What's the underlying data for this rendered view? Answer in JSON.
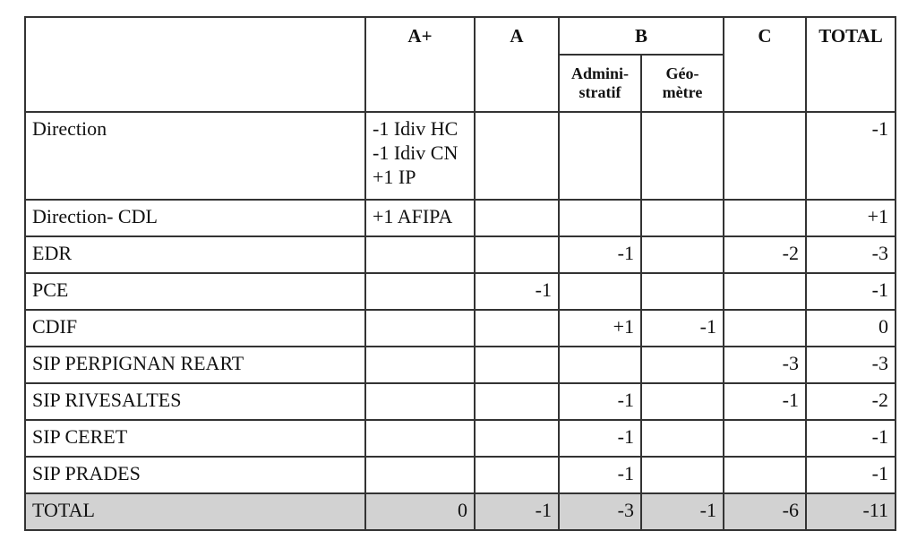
{
  "table": {
    "header": {
      "groups": [
        "A+",
        "A",
        "B",
        "C",
        "TOTAL"
      ],
      "sub": [
        [
          "Admini-",
          "stratif"
        ],
        [
          "Géo-",
          "mètre"
        ]
      ]
    },
    "rows": [
      {
        "label": "Direction",
        "cells": [
          [
            "-1 Idiv HC",
            "-1 Idiv CN",
            "+1 IP"
          ],
          null,
          null,
          null,
          null,
          "-1"
        ]
      },
      {
        "label": "Direction- CDL",
        "cells": [
          [
            "+1 AFIPA"
          ],
          null,
          null,
          null,
          null,
          "+1"
        ]
      },
      {
        "label": "EDR",
        "cells": [
          null,
          null,
          "-1",
          null,
          "-2",
          "-3"
        ]
      },
      {
        "label": "PCE",
        "cells": [
          null,
          "-1",
          null,
          null,
          null,
          "-1"
        ]
      },
      {
        "label": "CDIF",
        "cells": [
          null,
          null,
          "+1",
          "-1",
          null,
          "0"
        ]
      },
      {
        "label": "SIP PERPIGNAN REART",
        "cells": [
          null,
          null,
          null,
          null,
          "-3",
          "-3"
        ]
      },
      {
        "label": "SIP RIVESALTES",
        "cells": [
          null,
          null,
          "-1",
          null,
          "-1",
          "-2"
        ]
      },
      {
        "label": "SIP CERET",
        "cells": [
          null,
          null,
          "-1",
          null,
          null,
          "-1"
        ]
      },
      {
        "label": "SIP PRADES",
        "cells": [
          null,
          null,
          "-1",
          null,
          null,
          "-1"
        ]
      }
    ],
    "total": {
      "label": "TOTAL",
      "cells": [
        "0",
        "-1",
        "-3",
        "-1",
        "-6",
        "-11"
      ]
    }
  }
}
